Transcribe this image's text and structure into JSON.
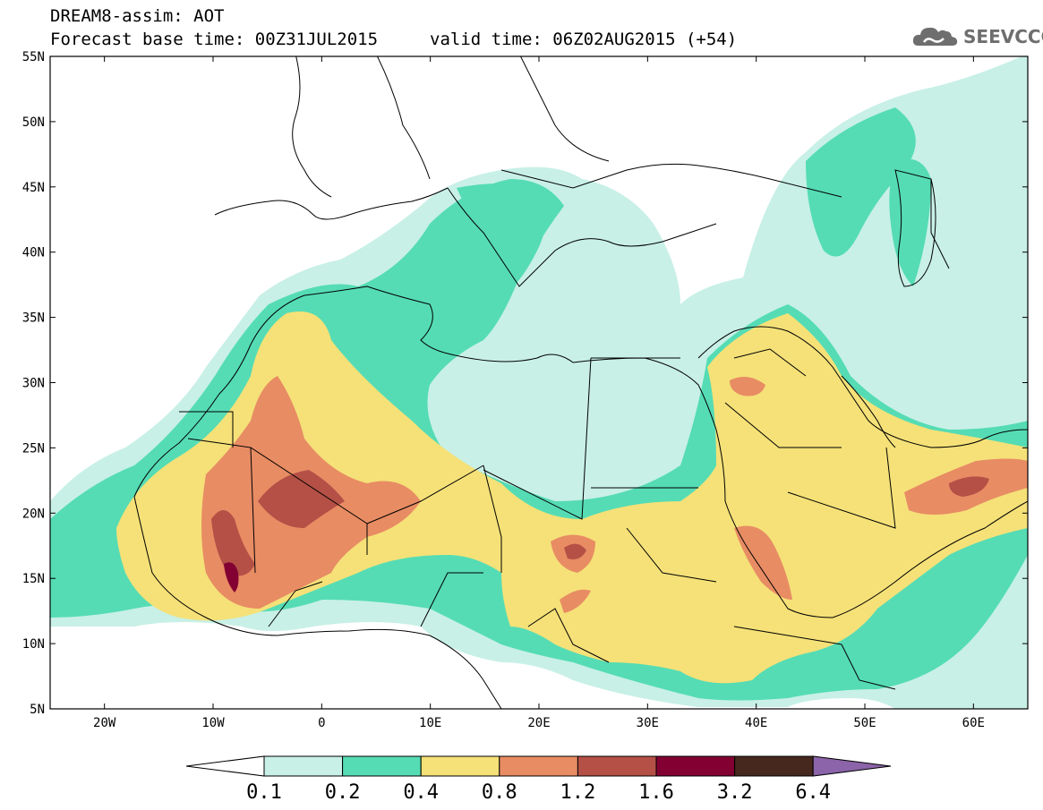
{
  "title": {
    "line1": "DREAM8-assim: AOT",
    "line2": "Forecast base time: 00Z31JUL2015",
    "valid": "valid time: 06Z02AUG2015 (+54)"
  },
  "logo": {
    "text": "SEEVCCC",
    "icon": "cloud-icon"
  },
  "map": {
    "lat_range": [
      5,
      55
    ],
    "lon_range": [
      -25,
      65
    ],
    "lat_labels": [
      "55N",
      "50N",
      "45N",
      "40N",
      "35N",
      "30N",
      "25N",
      "20N",
      "15N",
      "10N",
      "5N"
    ],
    "lon_labels": [
      "20W",
      "10W",
      "0",
      "10E",
      "20E",
      "30E",
      "40E",
      "50E",
      "60E"
    ]
  },
  "colorbar": {
    "levels": [
      "0.1",
      "0.2",
      "0.4",
      "0.8",
      "1.2",
      "1.6",
      "3.2",
      "6.4"
    ],
    "colors": [
      "#ffffff",
      "#c8f0e6",
      "#55dcb4",
      "#f5e178",
      "#e88c64",
      "#b45046",
      "#820032",
      "#46281e",
      "#8c64aa"
    ]
  }
}
